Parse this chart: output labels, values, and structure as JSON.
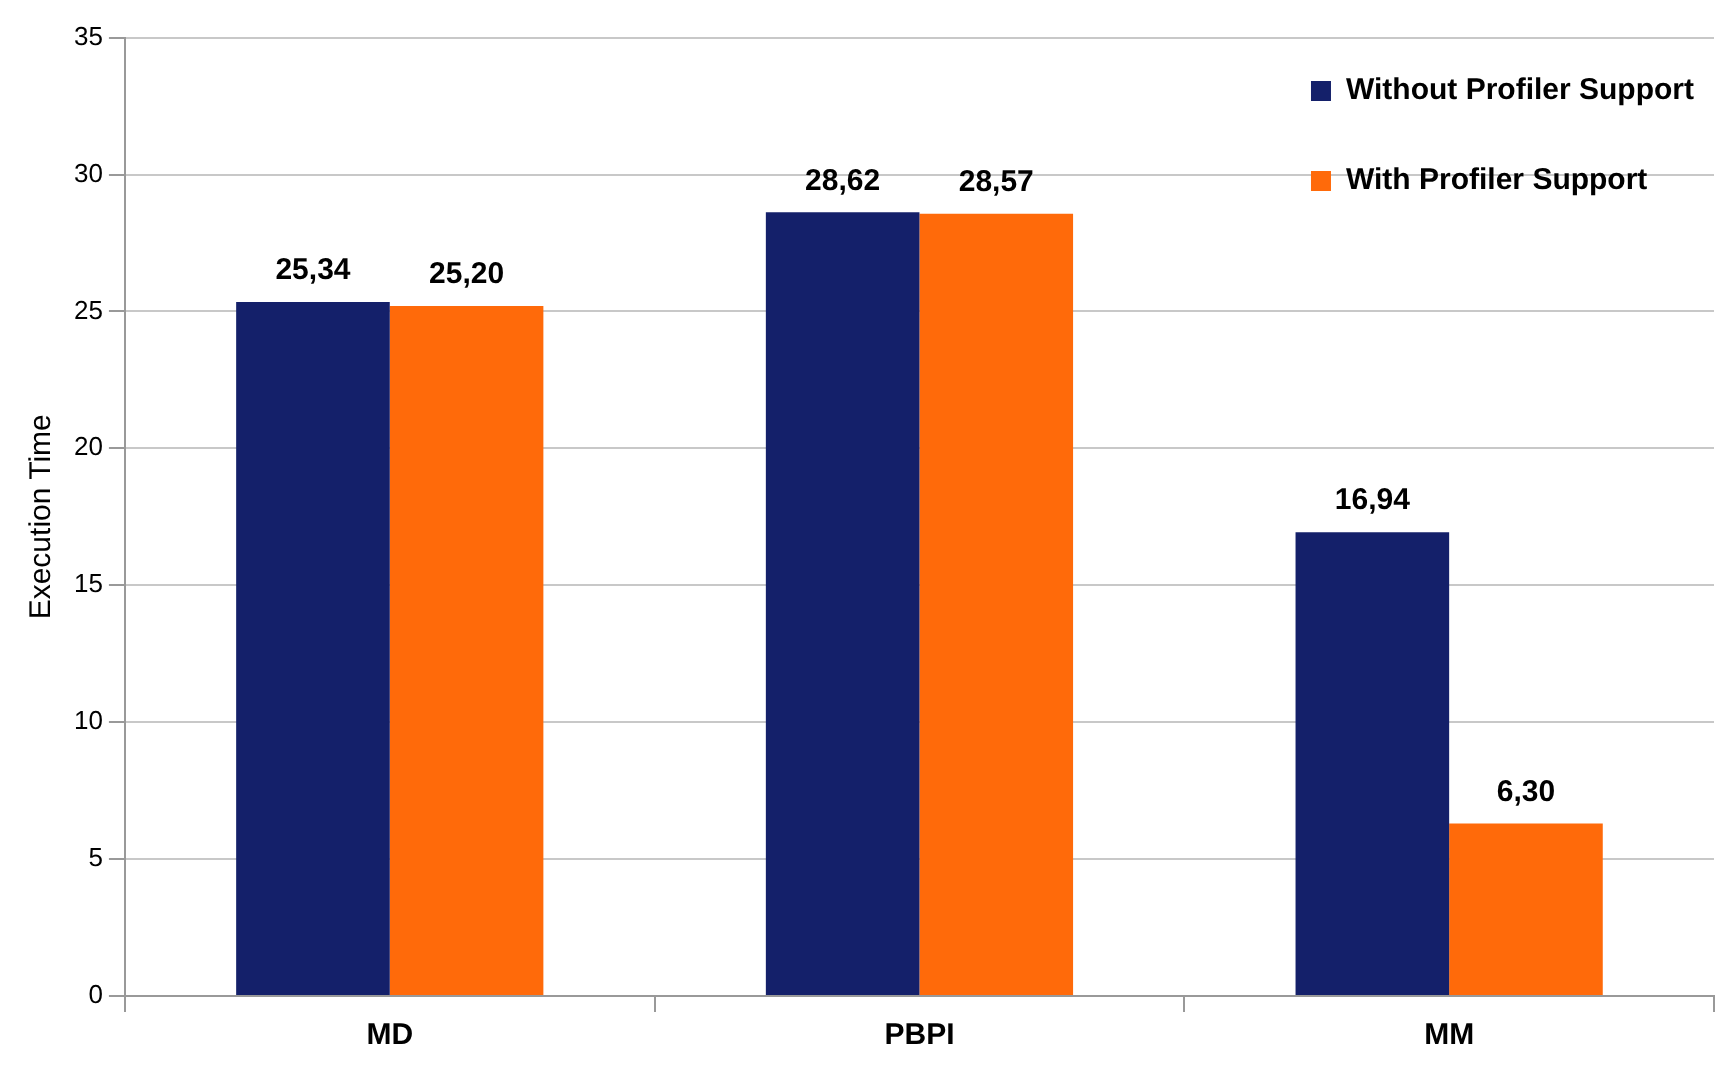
{
  "chart_data": {
    "type": "bar",
    "ylabel": "Execution Time",
    "categories": [
      "MD",
      "PBPI",
      "MM"
    ],
    "series": [
      {
        "name": "Without Profiler Support",
        "color": "#14206a",
        "values": [
          25.34,
          28.62,
          16.94
        ],
        "value_labels": [
          "25,34",
          "28,62",
          "16,94"
        ]
      },
      {
        "name": "With Profiler Support",
        "color": "#ff6a0a",
        "values": [
          25.2,
          28.57,
          6.3
        ],
        "value_labels": [
          "25,20",
          "28,57",
          "6,30"
        ]
      }
    ],
    "ylim": [
      0,
      35
    ],
    "yticks": [
      0,
      5,
      10,
      15,
      20,
      25,
      30,
      35
    ],
    "grid": "y",
    "legend": "top right"
  }
}
